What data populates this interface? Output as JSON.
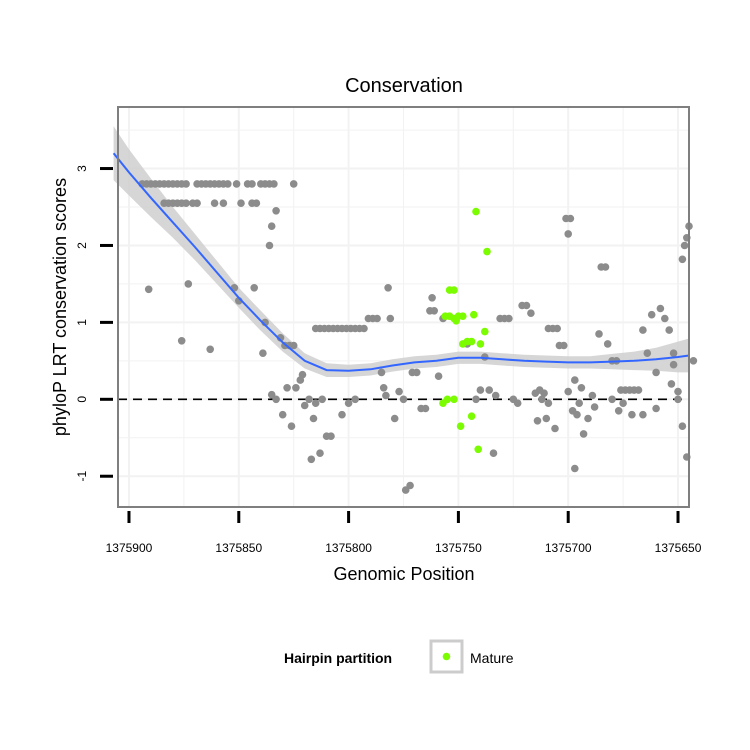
{
  "chart_data": {
    "type": "scatter",
    "title": "Conservation",
    "xlabel": "Genomic Position",
    "ylabel": "phyloP LRT conservation scores",
    "xlim": [
      1375905,
      1375645
    ],
    "x_reversed": true,
    "ylim": [
      -1.4,
      3.8
    ],
    "x_ticks": [
      1375900,
      1375850,
      1375800,
      1375750,
      1375700,
      1375650
    ],
    "x_tick_labels": [
      "1375900",
      "1375850",
      "1375800",
      "1375750",
      "1375700",
      "1375650"
    ],
    "y_ticks": [
      -1,
      0,
      1,
      2,
      3
    ],
    "y_tick_labels": [
      "-1",
      "0",
      "1",
      "2",
      "3"
    ],
    "reference_line": {
      "y": 0,
      "style": "dashed"
    },
    "colors": {
      "other": "#8c8c8c",
      "mature": "#7cfc00",
      "smooth": "#3366ff",
      "band": "#cccccc",
      "frame": "#7f7f7f"
    },
    "legend": {
      "title": "Hairpin partition",
      "entries": [
        "Mature"
      ],
      "position": "bottom"
    },
    "series": [
      {
        "name": "other",
        "points": [
          [
            1375894,
            2.8
          ],
          [
            1375892,
            2.8
          ],
          [
            1375890,
            2.8
          ],
          [
            1375888,
            2.8
          ],
          [
            1375886,
            2.8
          ],
          [
            1375884,
            2.8
          ],
          [
            1375882,
            2.8
          ],
          [
            1375880,
            2.8
          ],
          [
            1375878,
            2.8
          ],
          [
            1375876,
            2.8
          ],
          [
            1375874,
            2.8
          ],
          [
            1375869,
            2.8
          ],
          [
            1375867,
            2.8
          ],
          [
            1375865,
            2.8
          ],
          [
            1375863,
            2.8
          ],
          [
            1375861,
            2.8
          ],
          [
            1375859,
            2.8
          ],
          [
            1375857,
            2.8
          ],
          [
            1375855,
            2.8
          ],
          [
            1375851,
            2.8
          ],
          [
            1375846,
            2.8
          ],
          [
            1375844,
            2.8
          ],
          [
            1375840,
            2.8
          ],
          [
            1375838,
            2.8
          ],
          [
            1375836,
            2.8
          ],
          [
            1375834,
            2.8
          ],
          [
            1375884,
            2.55
          ],
          [
            1375882,
            2.55
          ],
          [
            1375880,
            2.55
          ],
          [
            1375878,
            2.55
          ],
          [
            1375876,
            2.55
          ],
          [
            1375874,
            2.55
          ],
          [
            1375871,
            2.55
          ],
          [
            1375869,
            2.55
          ],
          [
            1375861,
            2.55
          ],
          [
            1375857,
            2.55
          ],
          [
            1375849,
            2.55
          ],
          [
            1375844,
            2.55
          ],
          [
            1375842,
            2.55
          ],
          [
            1375891,
            1.43
          ],
          [
            1375876,
            0.76
          ],
          [
            1375873,
            1.5
          ],
          [
            1375863,
            0.65
          ],
          [
            1375852,
            1.45
          ],
          [
            1375850,
            1.28
          ],
          [
            1375843,
            1.45
          ],
          [
            1375838,
            1.0
          ],
          [
            1375839,
            0.6
          ],
          [
            1375836,
            2.0
          ],
          [
            1375835,
            2.25
          ],
          [
            1375833,
            2.45
          ],
          [
            1375831,
            0.8
          ],
          [
            1375829,
            0.7
          ],
          [
            1375827,
            0.7
          ],
          [
            1375825,
            0.7
          ],
          [
            1375835,
            0.06
          ],
          [
            1375833,
            0.0
          ],
          [
            1375830,
            -0.2
          ],
          [
            1375828,
            0.15
          ],
          [
            1375826,
            -0.35
          ],
          [
            1375825,
            2.8
          ],
          [
            1375824,
            0.15
          ],
          [
            1375822,
            0.25
          ],
          [
            1375821,
            0.32
          ],
          [
            1375820,
            -0.08
          ],
          [
            1375818,
            0.0
          ],
          [
            1375817,
            -0.78
          ],
          [
            1375816,
            -0.25
          ],
          [
            1375815,
            -0.05
          ],
          [
            1375813,
            -0.7
          ],
          [
            1375812,
            0.0
          ],
          [
            1375810,
            -0.48
          ],
          [
            1375808,
            -0.48
          ],
          [
            1375815,
            0.92
          ],
          [
            1375813,
            0.92
          ],
          [
            1375811,
            0.92
          ],
          [
            1375809,
            0.92
          ],
          [
            1375807,
            0.92
          ],
          [
            1375805,
            0.92
          ],
          [
            1375803,
            0.92
          ],
          [
            1375801,
            0.92
          ],
          [
            1375799,
            0.92
          ],
          [
            1375797,
            0.92
          ],
          [
            1375795,
            0.92
          ],
          [
            1375793,
            0.92
          ],
          [
            1375803,
            -0.2
          ],
          [
            1375800,
            -0.05
          ],
          [
            1375797,
            0.0
          ],
          [
            1375791,
            1.05
          ],
          [
            1375789,
            1.05
          ],
          [
            1375787,
            1.05
          ],
          [
            1375785,
            0.35
          ],
          [
            1375784,
            0.15
          ],
          [
            1375783,
            0.05
          ],
          [
            1375782,
            1.45
          ],
          [
            1375781,
            1.05
          ],
          [
            1375779,
            -0.25
          ],
          [
            1375777,
            0.1
          ],
          [
            1375775,
            0.0
          ],
          [
            1375774,
            -1.18
          ],
          [
            1375772,
            -1.12
          ],
          [
            1375771,
            0.35
          ],
          [
            1375769,
            0.35
          ],
          [
            1375767,
            -0.12
          ],
          [
            1375765,
            -0.12
          ],
          [
            1375763,
            1.15
          ],
          [
            1375762,
            1.32
          ],
          [
            1375761,
            1.15
          ],
          [
            1375759,
            0.3
          ],
          [
            1375757,
            1.05
          ],
          [
            1375746,
            0.72
          ],
          [
            1375742,
            0.0
          ],
          [
            1375740,
            0.12
          ],
          [
            1375738,
            0.55
          ],
          [
            1375736,
            0.12
          ],
          [
            1375734,
            -0.7
          ],
          [
            1375733,
            0.05
          ],
          [
            1375731,
            1.05
          ],
          [
            1375729,
            1.05
          ],
          [
            1375727,
            1.05
          ],
          [
            1375725,
            0.0
          ],
          [
            1375723,
            -0.05
          ],
          [
            1375721,
            1.22
          ],
          [
            1375719,
            1.22
          ],
          [
            1375717,
            1.12
          ],
          [
            1375715,
            0.08
          ],
          [
            1375713,
            0.12
          ],
          [
            1375711,
            0.08
          ],
          [
            1375709,
            0.92
          ],
          [
            1375707,
            0.92
          ],
          [
            1375705,
            0.92
          ],
          [
            1375714,
            -0.28
          ],
          [
            1375712,
            0.0
          ],
          [
            1375710,
            -0.25
          ],
          [
            1375709,
            -0.05
          ],
          [
            1375706,
            -0.38
          ],
          [
            1375704,
            0.7
          ],
          [
            1375702,
            0.7
          ],
          [
            1375701,
            2.35
          ],
          [
            1375699,
            2.35
          ],
          [
            1375700,
            2.15
          ],
          [
            1375700,
            0.1
          ],
          [
            1375698,
            -0.15
          ],
          [
            1375697,
            0.25
          ],
          [
            1375696,
            -0.2
          ],
          [
            1375695,
            -0.05
          ],
          [
            1375694,
            0.15
          ],
          [
            1375693,
            -0.45
          ],
          [
            1375691,
            -0.25
          ],
          [
            1375689,
            0.05
          ],
          [
            1375688,
            -0.1
          ],
          [
            1375685,
            1.72
          ],
          [
            1375683,
            1.72
          ],
          [
            1375697,
            -0.9
          ],
          [
            1375680,
            0.5
          ],
          [
            1375678,
            0.5
          ],
          [
            1375682,
            0.72
          ],
          [
            1375686,
            0.85
          ],
          [
            1375677,
            -0.15
          ],
          [
            1375676,
            0.12
          ],
          [
            1375674,
            0.12
          ],
          [
            1375672,
            0.12
          ],
          [
            1375670,
            0.12
          ],
          [
            1375668,
            0.12
          ],
          [
            1375680,
            0.0
          ],
          [
            1375671,
            -0.2
          ],
          [
            1375666,
            0.9
          ],
          [
            1375664,
            0.6
          ],
          [
            1375662,
            1.1
          ],
          [
            1375660,
            0.35
          ],
          [
            1375658,
            1.18
          ],
          [
            1375656,
            1.05
          ],
          [
            1375654,
            0.9
          ],
          [
            1375652,
            0.6
          ],
          [
            1375653,
            0.2
          ],
          [
            1375650,
            0.0
          ],
          [
            1375648,
            -0.35
          ],
          [
            1375646,
            -0.75
          ],
          [
            1375652,
            0.45
          ],
          [
            1375650,
            0.1
          ],
          [
            1375648,
            1.82
          ],
          [
            1375647,
            2.0
          ],
          [
            1375646,
            2.1
          ],
          [
            1375645,
            2.25
          ],
          [
            1375643,
            0.5
          ],
          [
            1375660,
            -0.12
          ],
          [
            1375666,
            -0.2
          ],
          [
            1375675,
            -0.05
          ]
        ]
      },
      {
        "name": "Mature",
        "points": [
          [
            1375742,
            2.44
          ],
          [
            1375737,
            1.92
          ],
          [
            1375754,
            1.42
          ],
          [
            1375752,
            1.42
          ],
          [
            1375756,
            1.08
          ],
          [
            1375754,
            1.08
          ],
          [
            1375752,
            1.05
          ],
          [
            1375750,
            1.08
          ],
          [
            1375748,
            1.08
          ],
          [
            1375743,
            1.1
          ],
          [
            1375746,
            0.75
          ],
          [
            1375744,
            0.75
          ],
          [
            1375748,
            0.72
          ],
          [
            1375740,
            0.72
          ],
          [
            1375738,
            0.88
          ],
          [
            1375751,
            1.02
          ],
          [
            1375757,
            -0.05
          ],
          [
            1375755,
            0.0
          ],
          [
            1375752,
            0.0
          ],
          [
            1375749,
            -0.35
          ],
          [
            1375744,
            -0.22
          ],
          [
            1375741,
            -0.65
          ]
        ]
      }
    ],
    "smooth": {
      "x": [
        1375907,
        1375900,
        1375890,
        1375880,
        1375870,
        1375860,
        1375850,
        1375840,
        1375830,
        1375820,
        1375810,
        1375800,
        1375790,
        1375780,
        1375770,
        1375760,
        1375750,
        1375740,
        1375730,
        1375720,
        1375710,
        1375700,
        1375690,
        1375680,
        1375670,
        1375660,
        1375650,
        1375645
      ],
      "y": [
        3.2,
        2.95,
        2.62,
        2.3,
        1.98,
        1.65,
        1.32,
        1.02,
        0.74,
        0.5,
        0.38,
        0.37,
        0.39,
        0.44,
        0.48,
        0.5,
        0.54,
        0.54,
        0.52,
        0.5,
        0.49,
        0.48,
        0.48,
        0.49,
        0.5,
        0.52,
        0.55,
        0.57
      ],
      "se": [
        0.35,
        0.3,
        0.25,
        0.2,
        0.17,
        0.15,
        0.13,
        0.13,
        0.12,
        0.1,
        0.09,
        0.08,
        0.08,
        0.08,
        0.08,
        0.08,
        0.08,
        0.08,
        0.08,
        0.08,
        0.08,
        0.08,
        0.08,
        0.1,
        0.12,
        0.15,
        0.2,
        0.22
      ]
    }
  }
}
